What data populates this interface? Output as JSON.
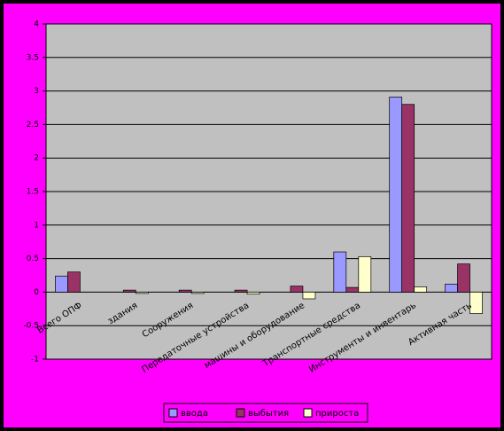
{
  "chart_data": {
    "type": "bar",
    "categories": [
      "Всего ОПФ",
      "здания",
      "Сооружения",
      "Передаточные устройства",
      "машины и оборудование",
      "Транспортные средства",
      "Инструменты и инвентарь",
      "Активная часть"
    ],
    "series": [
      {
        "name": "ввода",
        "color": "#9999ff",
        "values": [
          0.24,
          0,
          0,
          0,
          0,
          0.6,
          2.91,
          0.12
        ]
      },
      {
        "name": "выбытия",
        "color": "#993366",
        "values": [
          0.3,
          0.03,
          0.03,
          0.03,
          0.09,
          0.07,
          2.8,
          0.42
        ]
      },
      {
        "name": "прироста",
        "color": "#ffffcc",
        "values": [
          0,
          -0.02,
          -0.02,
          -0.03,
          -0.1,
          0.53,
          0.08,
          -0.32
        ]
      }
    ],
    "ylim": [
      -1,
      4
    ],
    "yticks": [
      -1,
      -0.5,
      0,
      0.5,
      1,
      1.5,
      2,
      2.5,
      3,
      3.5,
      4
    ],
    "grid": true,
    "legend": "bottom"
  }
}
